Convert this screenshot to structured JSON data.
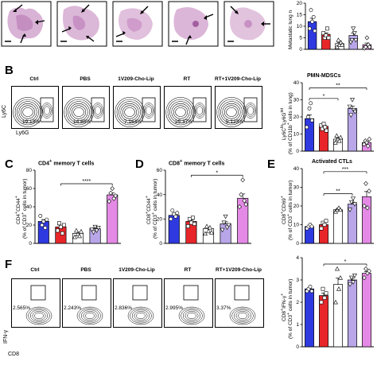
{
  "panel_labels": {
    "b": "B",
    "c": "C",
    "d": "D",
    "e": "E",
    "f": "F"
  },
  "group_colors": [
    "#2f39e0",
    "#e8262a",
    "#ffffff",
    "#b9a6e8",
    "#e48ae6"
  ],
  "panel_a": {
    "ylabel": "Metastatic lung n"
  },
  "panel_b": {
    "samples": [
      "Ctrl",
      "PBS",
      "1V209-Cho-Lip",
      "RT",
      "RT+1V209-Cho-Lip"
    ],
    "percentages": [
      "19.13%",
      "14.86%",
      "7.164%",
      "25.37%",
      "5.123%"
    ],
    "y_axis": "Ly6C",
    "x_axis": "Ly6G"
  },
  "panel_f": {
    "samples": [
      "Ctrl",
      "PBS",
      "1V209-Cho-Lip",
      "RT",
      "RT+1V209-Cho-Lip"
    ],
    "percentages": [
      "2.565%",
      "2.243%",
      "2.836%",
      "2.995%",
      "3.37%"
    ],
    "y_axis": "IFN-γ",
    "x_axis": "CD8"
  },
  "chart_data": [
    {
      "id": "top_right",
      "type": "bar",
      "ylabel": "Metastatic lung n",
      "ylim": [
        0,
        20
      ],
      "yticks": [
        "0",
        "5",
        "10",
        "15",
        "20"
      ],
      "values": [
        12,
        6.5,
        2.5,
        6,
        2
      ],
      "points": [
        [
          9,
          17,
          12,
          14,
          8
        ],
        [
          7,
          5,
          6,
          9,
          5
        ],
        [
          1,
          4,
          2,
          3,
          2
        ],
        [
          3,
          4,
          9,
          7,
          4
        ],
        [
          0.5,
          1,
          5,
          2,
          1
        ]
      ],
      "sig": []
    },
    {
      "id": "B",
      "type": "bar",
      "title": "PMN-MDSCs",
      "ylabel": "Ly6C^lo Ly6G^int (% of CD11b+ cells in lung)",
      "ylim": [
        0,
        40
      ],
      "yticks": [
        "0",
        "10",
        "20",
        "30",
        "40"
      ],
      "values": [
        19,
        14.5,
        7,
        25,
        5
      ],
      "points": [
        [
          14,
          20,
          25,
          28,
          18
        ],
        [
          15,
          13,
          16,
          14,
          12
        ],
        [
          5,
          9,
          7,
          6,
          8
        ],
        [
          26,
          21,
          30,
          24,
          23
        ],
        [
          4,
          6,
          5,
          3,
          7
        ]
      ],
      "sig": [
        {
          "from": 0,
          "to": 2,
          "label": "*",
          "level": 0
        },
        {
          "from": 0,
          "to": 4,
          "label": "**",
          "level": 1
        }
      ]
    },
    {
      "id": "C",
      "type": "bar",
      "title": "CD4+ memory T cells",
      "ylabel": "CD4+CD44+ (% of CD3+ cells in tumor)",
      "ylim": [
        0,
        80
      ],
      "yticks": [
        "0",
        "20",
        "40",
        "60",
        "80"
      ],
      "values": [
        24,
        18,
        11,
        16,
        53
      ],
      "points": [
        [
          30,
          20,
          24,
          17,
          26
        ],
        [
          14,
          22,
          18,
          11,
          20
        ],
        [
          7,
          14,
          10,
          8,
          13
        ],
        [
          15,
          12,
          18,
          14,
          17
        ],
        [
          46,
          55,
          60,
          49,
          52
        ]
      ],
      "sig": [
        {
          "from": 1,
          "to": 4,
          "label": "****",
          "level": 0
        }
      ]
    },
    {
      "id": "D",
      "type": "bar",
      "title": "CD8+ memory T cells",
      "ylabel": "CD8+CD44+ (% of CD3+ cells in tumor)",
      "ylim": [
        0,
        60
      ],
      "yticks": [
        "0",
        "20",
        "40",
        "60"
      ],
      "values": [
        23,
        18,
        12,
        16,
        37
      ],
      "points": [
        [
          20,
          27,
          24,
          22,
          25
        ],
        [
          14,
          20,
          17,
          21,
          16
        ],
        [
          8,
          14,
          10,
          13,
          9
        ],
        [
          11,
          17,
          22,
          13,
          15
        ],
        [
          30,
          40,
          52,
          35,
          32
        ]
      ],
      "sig": [
        {
          "from": 1,
          "to": 4,
          "label": "*",
          "level": 0
        }
      ]
    },
    {
      "id": "E1",
      "type": "bar",
      "title": "Activated CTLs",
      "ylabel": "CD8+CD69+ (% of CD3+ cells in tumor)",
      "ylim": [
        0,
        40
      ],
      "yticks": [
        "0",
        "10",
        "20",
        "30",
        "40"
      ],
      "values": [
        9,
        10,
        18,
        21,
        25
      ],
      "points": [
        [
          8,
          9,
          10,
          9
        ],
        [
          8,
          11,
          10,
          12
        ],
        [
          17,
          18,
          19,
          18
        ],
        [
          18,
          22,
          24,
          21
        ],
        [
          20,
          32,
          19,
          28
        ]
      ],
      "sig": [
        {
          "from": 1,
          "to": 3,
          "label": "**",
          "level": 0
        },
        {
          "from": 1,
          "to": 4,
          "label": "***",
          "level": 1
        }
      ]
    },
    {
      "id": "E2",
      "type": "bar",
      "ylabel": "CD8+IFN-γ+ (% of CD3+ cells in tumor)",
      "ylim": [
        0,
        4
      ],
      "yticks": [
        "0",
        "1",
        "2",
        "3",
        "4"
      ],
      "values": [
        2.6,
        2.3,
        2.8,
        3.0,
        3.3
      ],
      "points": [
        [
          2.5,
          2.6,
          2.7,
          2.5
        ],
        [
          2.0,
          2.6,
          2.2,
          2.4
        ],
        [
          2.0,
          3.5,
          2.6,
          3.1
        ],
        [
          2.8,
          3.1,
          2.9,
          3.2
        ],
        [
          3.1,
          3.5,
          3.3,
          3.4
        ]
      ],
      "sig": [
        {
          "from": 1,
          "to": 4,
          "label": "*",
          "level": 0
        }
      ]
    }
  ]
}
